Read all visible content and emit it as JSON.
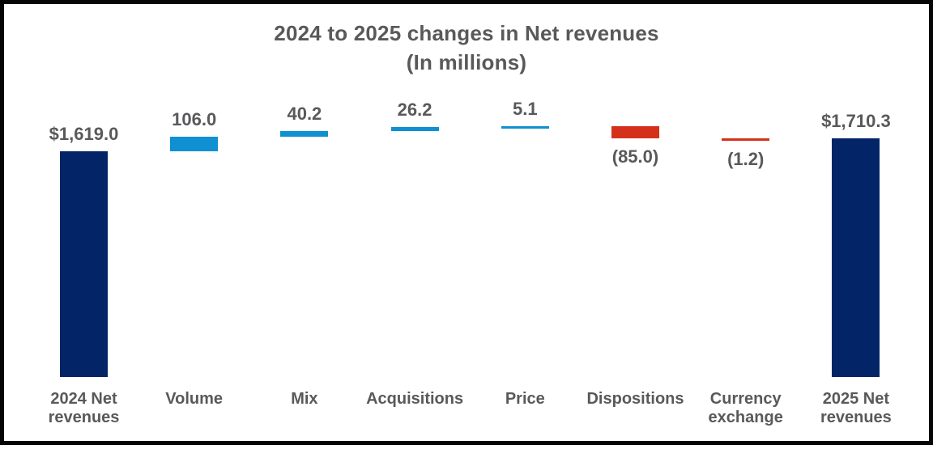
{
  "chart": {
    "title_line1": "2024 to 2025 changes in Net revenues",
    "title_line2": "(In millions)"
  },
  "chart_data": {
    "type": "bar",
    "subtype": "waterfall",
    "title": "2024 to 2025 changes in Net revenues (In millions)",
    "categories": [
      "2024 Net revenues",
      "Volume",
      "Mix",
      "Acquisitions",
      "Price",
      "Dispositions",
      "Currency exchange",
      "2025 Net revenues"
    ],
    "values": [
      1619.0,
      106.0,
      40.2,
      26.2,
      5.1,
      -85.0,
      -1.2,
      1710.3
    ],
    "roles": [
      "total",
      "increase",
      "increase",
      "increase",
      "increase",
      "decrease",
      "decrease",
      "total"
    ],
    "value_labels": [
      "$1,619.0",
      "106.0",
      "40.2",
      "26.2",
      "5.1",
      "(85.0)",
      "(1.2)",
      "$1,710.3"
    ],
    "colors": {
      "total": "#032466",
      "increase": "#0e90d2",
      "decrease": "#d5311a",
      "text": "#58595b"
    },
    "layout": {
      "grid": false,
      "legend": "none",
      "axes_hidden": true,
      "baseline_value": 0,
      "value_axis_range": [
        0,
        1800
      ]
    }
  }
}
